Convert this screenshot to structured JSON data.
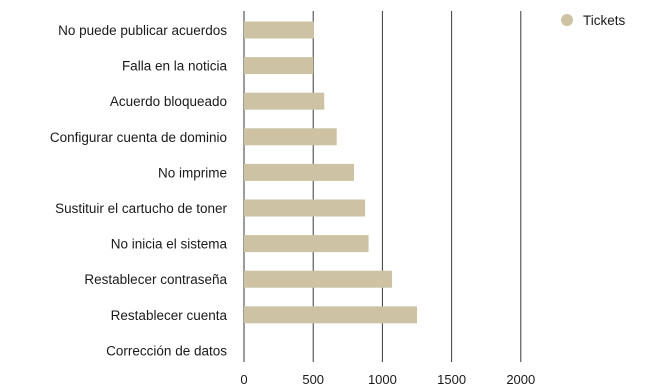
{
  "chart_data": {
    "type": "bar",
    "orientation": "horizontal",
    "categories": [
      "No puede publicar acuerdos",
      "Falla en la noticia",
      "Acuerdo bloqueado",
      "Configurar cuenta de dominio",
      "No imprime",
      "Sustituir el cartucho de toner",
      "No inicia el sistema",
      "Restablecer contraseña",
      "Restablecer cuenta",
      "Corrección de datos"
    ],
    "series": [
      {
        "name": "Tickets",
        "color": "#cdc2a3",
        "values": [
          505,
          500,
          580,
          670,
          795,
          875,
          900,
          1070,
          1250,
          0
        ]
      }
    ],
    "xlim": [
      0,
      2500
    ],
    "xticks": [
      "0",
      "500",
      "1000",
      "1500",
      "2000"
    ],
    "grid": "vertical",
    "legend": "top-right",
    "title": "",
    "xlabel": "",
    "ylabel": ""
  }
}
